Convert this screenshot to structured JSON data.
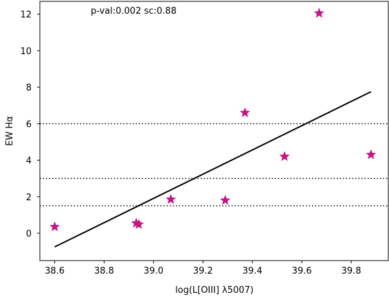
{
  "chart_data": {
    "type": "scatter",
    "title": "",
    "xlabel": "log(L[OIII] λ5007)",
    "ylabel": "EW Hα",
    "xlim": [
      38.54,
      39.95
    ],
    "ylim": [
      -1.5,
      12.7
    ],
    "xticks": [
      "38.6",
      "38.8",
      "39.0",
      "39.2",
      "39.4",
      "39.6",
      "39.8"
    ],
    "yticks": [
      "0",
      "2",
      "4",
      "6",
      "8",
      "10",
      "12"
    ],
    "grid": false,
    "annotation": "p-val:0.002  sc:0.88",
    "marker": "star",
    "marker_color": "#c71585",
    "line_color": "#000000",
    "points": [
      {
        "x": 38.6,
        "y": 0.35
      },
      {
        "x": 38.93,
        "y": 0.55
      },
      {
        "x": 38.94,
        "y": 0.48
      },
      {
        "x": 39.07,
        "y": 1.85
      },
      {
        "x": 39.29,
        "y": 1.8
      },
      {
        "x": 39.37,
        "y": 6.6
      },
      {
        "x": 39.53,
        "y": 4.2
      },
      {
        "x": 39.67,
        "y": 12.05
      },
      {
        "x": 39.88,
        "y": 4.3
      }
    ],
    "fit_line": {
      "x": [
        38.6,
        39.88
      ],
      "y": [
        -0.75,
        7.75
      ]
    },
    "hlines": [
      1.5,
      3.0,
      6.0
    ]
  }
}
